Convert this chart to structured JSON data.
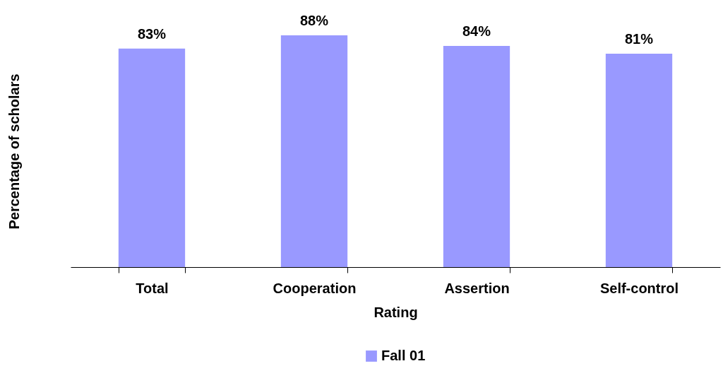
{
  "chart_data": {
    "type": "bar",
    "xlabel": "Rating",
    "ylabel": "Percentage of scholars",
    "categories": [
      "Total",
      "Cooperation",
      "Assertion",
      "Self-control"
    ],
    "series": [
      {
        "name": "Fall 01",
        "color": "#9999ff",
        "values": [
          83,
          88,
          84,
          81
        ],
        "value_labels": [
          "83%",
          "88%",
          "84%",
          "81%"
        ]
      }
    ],
    "grid": false,
    "legend": "bottom"
  }
}
